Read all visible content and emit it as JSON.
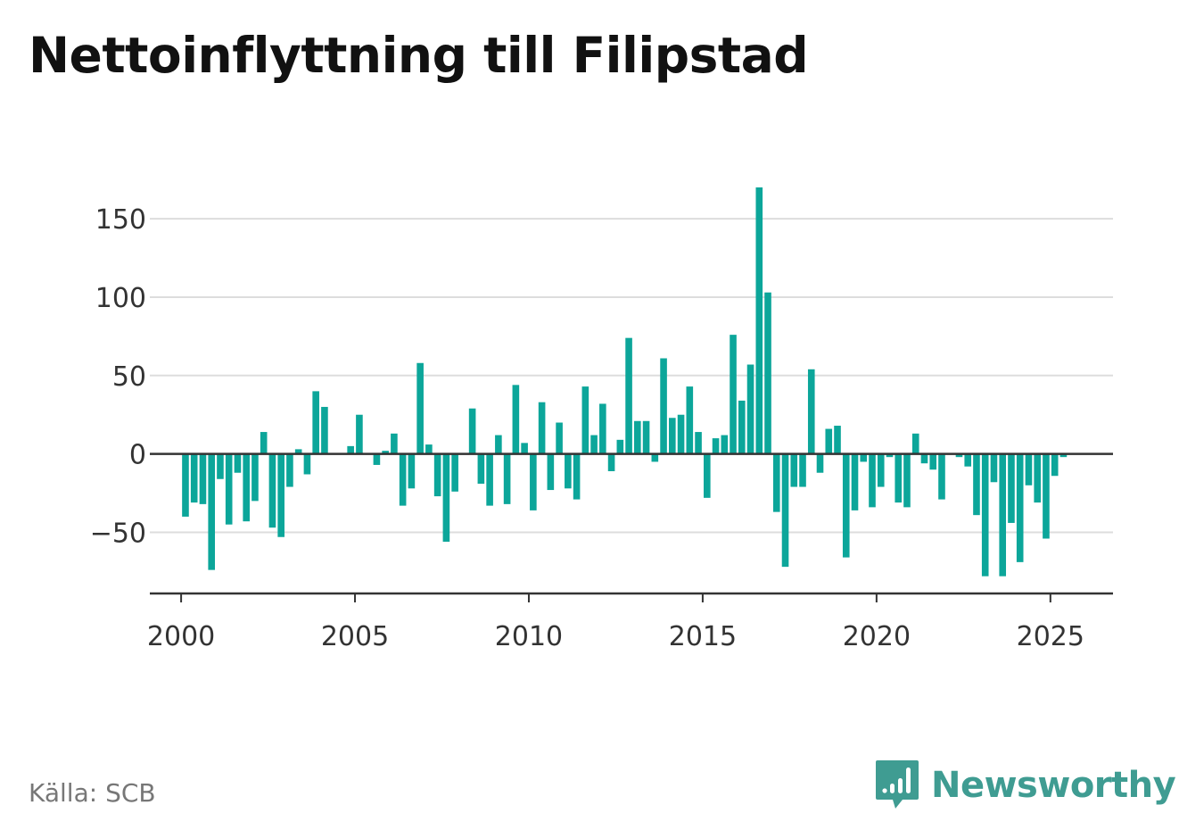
{
  "header": {
    "title": "Nettoinflyttning till Filipstad"
  },
  "footer": {
    "source": "Källa: SCB",
    "brand": "Newsworthy"
  },
  "colors": {
    "bar": "#0ca69a",
    "grid": "#dddddd",
    "axis": "#333333",
    "brand": "#3f9c92"
  },
  "icons": {
    "logo": "speech-bubble-bar-chart-icon"
  },
  "chart_data": {
    "type": "bar",
    "title": "Nettoinflyttning till Filipstad",
    "xlabel": "",
    "ylabel": "",
    "ylim": [
      -89,
      170
    ],
    "xlim": [
      1999.1,
      2026.8
    ],
    "y_ticks": [
      -50,
      0,
      50,
      100,
      150
    ],
    "y_tick_labels": [
      "−50",
      "0",
      "50",
      "100",
      "150"
    ],
    "x_ticks": [
      2000,
      2005,
      2010,
      2015,
      2020,
      2025
    ],
    "x_tick_labels": [
      "2000",
      "2005",
      "2010",
      "2015",
      "2020",
      "2025"
    ],
    "grid": true,
    "legend": "none",
    "series": [
      {
        "x": [
          "2000-Q1",
          "2000-Q2",
          "2000-Q3",
          "2000-Q4",
          "2001-Q1",
          "2001-Q2",
          "2001-Q3",
          "2001-Q4",
          "2002-Q1",
          "2002-Q2",
          "2002-Q3",
          "2002-Q4",
          "2003-Q1",
          "2003-Q2",
          "2003-Q3",
          "2003-Q4",
          "2004-Q1",
          "2004-Q2",
          "2004-Q3",
          "2004-Q4",
          "2005-Q1",
          "2005-Q2",
          "2005-Q3",
          "2005-Q4",
          "2006-Q1",
          "2006-Q2",
          "2006-Q3",
          "2006-Q4",
          "2007-Q1",
          "2007-Q2",
          "2007-Q3",
          "2007-Q4",
          "2008-Q1",
          "2008-Q2",
          "2008-Q3",
          "2008-Q4",
          "2009-Q1",
          "2009-Q2",
          "2009-Q3",
          "2009-Q4",
          "2010-Q1",
          "2010-Q2",
          "2010-Q3",
          "2010-Q4",
          "2011-Q1",
          "2011-Q2",
          "2011-Q3",
          "2011-Q4",
          "2012-Q1",
          "2012-Q2",
          "2012-Q3",
          "2012-Q4",
          "2013-Q1",
          "2013-Q2",
          "2013-Q3",
          "2013-Q4",
          "2014-Q1",
          "2014-Q2",
          "2014-Q3",
          "2014-Q4",
          "2015-Q1",
          "2015-Q2",
          "2015-Q3",
          "2015-Q4",
          "2016-Q1",
          "2016-Q2",
          "2016-Q3",
          "2016-Q4",
          "2017-Q1",
          "2017-Q2",
          "2017-Q3",
          "2017-Q4",
          "2018-Q1",
          "2018-Q2",
          "2018-Q3",
          "2018-Q4",
          "2019-Q1",
          "2019-Q2",
          "2019-Q3",
          "2019-Q4",
          "2020-Q1",
          "2020-Q2",
          "2020-Q3",
          "2020-Q4",
          "2021-Q1",
          "2021-Q2",
          "2021-Q3",
          "2021-Q4",
          "2022-Q1",
          "2022-Q2",
          "2022-Q3",
          "2022-Q4",
          "2023-Q1",
          "2023-Q2",
          "2023-Q3",
          "2023-Q4",
          "2024-Q1",
          "2024-Q2",
          "2024-Q3",
          "2024-Q4",
          "2025-Q1",
          "2025-Q2"
        ],
        "values": [
          -40,
          -31,
          -32,
          -74,
          -16,
          -45,
          -12,
          -43,
          -30,
          14,
          -47,
          -53,
          -21,
          3,
          -13,
          40,
          30,
          0,
          0,
          5,
          25,
          0,
          -7,
          2,
          13,
          -33,
          -22,
          58,
          6,
          -27,
          -56,
          -24,
          0,
          29,
          -19,
          -33,
          12,
          -32,
          44,
          7,
          -36,
          33,
          -23,
          20,
          -22,
          -29,
          43,
          12,
          32,
          -11,
          9,
          74,
          21,
          21,
          -5,
          61,
          23,
          25,
          43,
          14,
          -28,
          10,
          12,
          76,
          34,
          57,
          170,
          103,
          -37,
          -72,
          -21,
          -21,
          54,
          -12,
          16,
          18,
          -66,
          -36,
          -5,
          -34,
          -21,
          -2,
          -31,
          -34,
          13,
          -6,
          -10,
          -29,
          0,
          -2,
          -8,
          -39,
          -78,
          -18,
          -78,
          -44,
          -69,
          -20,
          -31,
          -54,
          -14,
          -2
        ]
      }
    ]
  }
}
